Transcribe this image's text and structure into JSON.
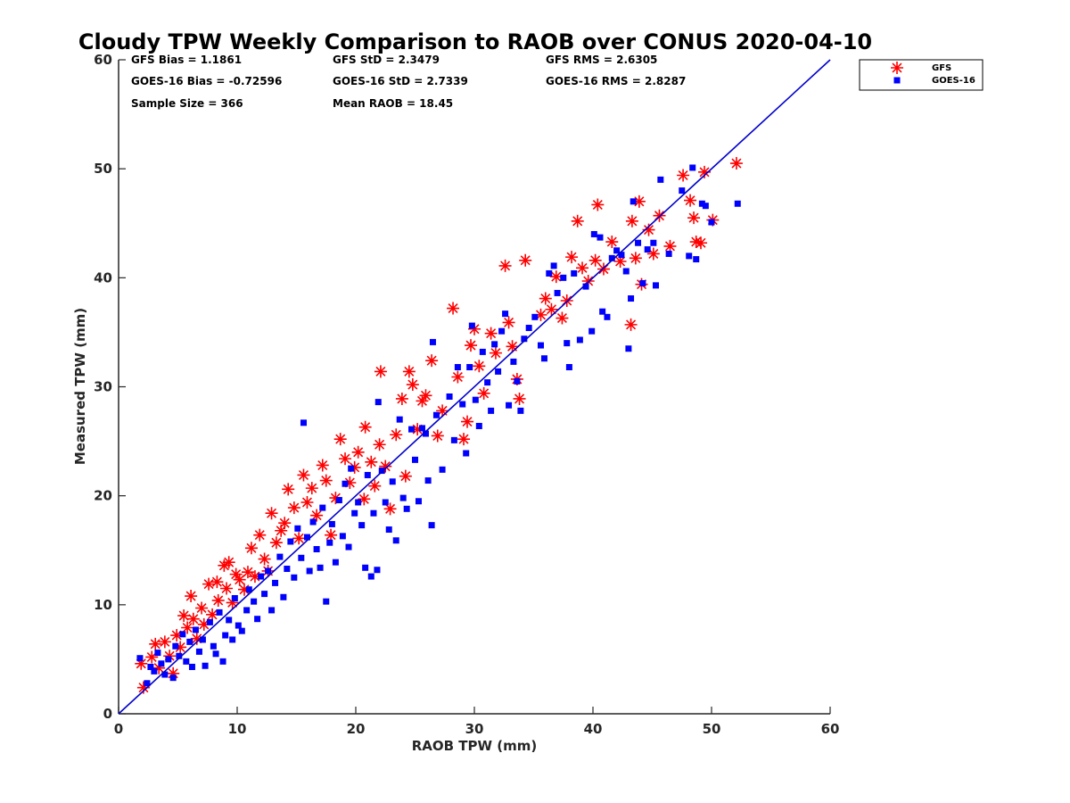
{
  "chart_data": {
    "type": "scatter",
    "title": "Cloudy TPW Weekly Comparison to RAOB over CONUS 2020-04-10",
    "xlabel": "RAOB TPW (mm)",
    "ylabel": "Measured TPW (mm)",
    "xlim": [
      0,
      60
    ],
    "ylim": [
      0,
      60
    ],
    "xticks": [
      0,
      10,
      20,
      30,
      40,
      50,
      60
    ],
    "yticks": [
      0,
      10,
      20,
      30,
      40,
      50,
      60
    ],
    "grid": false,
    "legend_position": "outside-top-right",
    "reference_line": {
      "x": [
        0,
        60
      ],
      "y": [
        0,
        60
      ],
      "color": "#0000cc"
    },
    "stats": [
      {
        "text": "GFS Bias = 1.1861"
      },
      {
        "text": "GFS StD = 2.3479"
      },
      {
        "text": "GFS RMS = 2.6305"
      },
      {
        "text": "GOES-16 Bias = -0.72596"
      },
      {
        "text": "GOES-16 StD = 2.7339"
      },
      {
        "text": "GOES-16 RMS = 2.8287"
      },
      {
        "text": "Sample Size = 366"
      },
      {
        "text": "Mean RAOB = 18.45"
      }
    ],
    "series": [
      {
        "name": "GFS",
        "marker": "asterisk",
        "color": "#ff0000",
        "points": [
          [
            2.1,
            2.4
          ],
          [
            1.9,
            4.6
          ],
          [
            2.8,
            5.2
          ],
          [
            3.1,
            6.4
          ],
          [
            3.4,
            4.2
          ],
          [
            3.9,
            6.6
          ],
          [
            4.3,
            5.3
          ],
          [
            4.6,
            3.7
          ],
          [
            4.9,
            7.2
          ],
          [
            5.2,
            6.1
          ],
          [
            5.5,
            9.0
          ],
          [
            5.8,
            7.9
          ],
          [
            6.3,
            8.7
          ],
          [
            6.1,
            10.8
          ],
          [
            6.6,
            6.9
          ],
          [
            7.0,
            9.7
          ],
          [
            7.2,
            8.2
          ],
          [
            7.6,
            11.9
          ],
          [
            7.9,
            9.1
          ],
          [
            8.3,
            12.1
          ],
          [
            8.4,
            10.4
          ],
          [
            8.9,
            13.6
          ],
          [
            9.1,
            11.5
          ],
          [
            9.3,
            13.9
          ],
          [
            9.6,
            10.2
          ],
          [
            9.9,
            12.8
          ],
          [
            10.2,
            12.3
          ],
          [
            10.6,
            11.4
          ],
          [
            10.9,
            13.0
          ],
          [
            11.2,
            15.2
          ],
          [
            11.5,
            12.6
          ],
          [
            11.9,
            16.4
          ],
          [
            12.3,
            14.2
          ],
          [
            12.6,
            13.1
          ],
          [
            12.9,
            18.4
          ],
          [
            13.3,
            15.7
          ],
          [
            13.7,
            16.8
          ],
          [
            14.0,
            17.5
          ],
          [
            14.3,
            20.6
          ],
          [
            14.8,
            18.9
          ],
          [
            15.2,
            16.1
          ],
          [
            15.6,
            21.9
          ],
          [
            15.9,
            19.4
          ],
          [
            16.3,
            20.7
          ],
          [
            16.7,
            18.2
          ],
          [
            17.2,
            22.8
          ],
          [
            17.5,
            21.4
          ],
          [
            17.9,
            16.4
          ],
          [
            18.3,
            19.8
          ],
          [
            18.7,
            25.2
          ],
          [
            19.1,
            23.4
          ],
          [
            19.5,
            21.2
          ],
          [
            19.9,
            22.6
          ],
          [
            20.2,
            24.0
          ],
          [
            20.7,
            19.7
          ],
          [
            20.8,
            26.3
          ],
          [
            21.3,
            23.1
          ],
          [
            21.6,
            20.9
          ],
          [
            22.0,
            24.7
          ],
          [
            22.1,
            31.4
          ],
          [
            22.5,
            22.7
          ],
          [
            22.9,
            18.8
          ],
          [
            23.4,
            25.6
          ],
          [
            23.9,
            28.9
          ],
          [
            24.2,
            21.8
          ],
          [
            24.5,
            31.4
          ],
          [
            24.8,
            30.2
          ],
          [
            25.2,
            26.1
          ],
          [
            25.6,
            28.7
          ],
          [
            25.9,
            29.2
          ],
          [
            26.4,
            32.4
          ],
          [
            26.9,
            25.5
          ],
          [
            27.3,
            27.8
          ],
          [
            28.2,
            37.2
          ],
          [
            28.6,
            30.9
          ],
          [
            29.1,
            25.2
          ],
          [
            29.4,
            26.8
          ],
          [
            29.7,
            33.8
          ],
          [
            30.0,
            35.3
          ],
          [
            30.4,
            31.9
          ],
          [
            30.8,
            29.4
          ],
          [
            31.4,
            34.9
          ],
          [
            31.8,
            33.1
          ],
          [
            32.6,
            41.1
          ],
          [
            32.9,
            35.9
          ],
          [
            33.2,
            33.7
          ],
          [
            33.6,
            30.7
          ],
          [
            33.8,
            28.9
          ],
          [
            34.3,
            41.6
          ],
          [
            35.6,
            36.6
          ],
          [
            36.0,
            38.1
          ],
          [
            36.5,
            37.1
          ],
          [
            36.9,
            40.1
          ],
          [
            37.4,
            36.3
          ],
          [
            37.8,
            37.9
          ],
          [
            38.2,
            41.9
          ],
          [
            38.7,
            45.2
          ],
          [
            39.1,
            40.9
          ],
          [
            39.6,
            39.7
          ],
          [
            40.2,
            41.6
          ],
          [
            40.4,
            46.7
          ],
          [
            40.9,
            40.8
          ],
          [
            41.6,
            43.3
          ],
          [
            42.3,
            41.5
          ],
          [
            43.2,
            35.7
          ],
          [
            43.3,
            45.2
          ],
          [
            43.6,
            41.8
          ],
          [
            43.9,
            47.0
          ],
          [
            44.1,
            39.4
          ],
          [
            44.7,
            44.4
          ],
          [
            45.1,
            42.2
          ],
          [
            45.6,
            45.7
          ],
          [
            46.5,
            42.9
          ],
          [
            47.6,
            49.4
          ],
          [
            48.2,
            47.1
          ],
          [
            48.5,
            45.5
          ],
          [
            48.7,
            43.3
          ],
          [
            49.1,
            43.2
          ],
          [
            49.4,
            49.7
          ],
          [
            50.1,
            45.3
          ],
          [
            52.1,
            50.5
          ]
        ]
      },
      {
        "name": "GOES-16",
        "marker": "square",
        "color": "#0000ff",
        "points": [
          [
            1.8,
            5.1
          ],
          [
            2.4,
            2.8
          ],
          [
            2.7,
            4.3
          ],
          [
            3.0,
            3.9
          ],
          [
            3.3,
            5.6
          ],
          [
            3.6,
            4.6
          ],
          [
            3.9,
            3.6
          ],
          [
            4.2,
            5.0
          ],
          [
            4.6,
            3.3
          ],
          [
            4.8,
            6.2
          ],
          [
            5.1,
            5.3
          ],
          [
            5.4,
            7.3
          ],
          [
            5.7,
            4.8
          ],
          [
            6.0,
            6.6
          ],
          [
            6.2,
            4.3
          ],
          [
            6.5,
            7.7
          ],
          [
            6.8,
            5.7
          ],
          [
            7.1,
            6.8
          ],
          [
            7.3,
            4.4
          ],
          [
            7.7,
            8.4
          ],
          [
            8.0,
            6.2
          ],
          [
            8.2,
            5.5
          ],
          [
            8.5,
            9.3
          ],
          [
            8.8,
            4.8
          ],
          [
            9.0,
            7.2
          ],
          [
            9.3,
            8.6
          ],
          [
            9.6,
            6.8
          ],
          [
            9.8,
            10.6
          ],
          [
            10.1,
            8.1
          ],
          [
            10.4,
            7.6
          ],
          [
            10.8,
            9.5
          ],
          [
            11.0,
            11.4
          ],
          [
            11.4,
            10.3
          ],
          [
            11.7,
            8.7
          ],
          [
            12.0,
            12.6
          ],
          [
            12.3,
            11.0
          ],
          [
            12.6,
            13.1
          ],
          [
            12.9,
            9.5
          ],
          [
            13.2,
            12.0
          ],
          [
            13.6,
            14.4
          ],
          [
            13.9,
            10.7
          ],
          [
            14.2,
            13.3
          ],
          [
            14.5,
            15.8
          ],
          [
            14.8,
            12.5
          ],
          [
            15.1,
            17.0
          ],
          [
            15.4,
            14.3
          ],
          [
            15.6,
            26.7
          ],
          [
            15.9,
            16.2
          ],
          [
            16.1,
            13.1
          ],
          [
            16.4,
            17.6
          ],
          [
            16.7,
            15.1
          ],
          [
            17.0,
            13.4
          ],
          [
            17.2,
            18.9
          ],
          [
            17.5,
            10.3
          ],
          [
            17.8,
            15.7
          ],
          [
            18.0,
            17.4
          ],
          [
            18.3,
            13.9
          ],
          [
            18.6,
            19.6
          ],
          [
            18.9,
            16.3
          ],
          [
            19.1,
            21.1
          ],
          [
            19.4,
            15.3
          ],
          [
            19.6,
            22.5
          ],
          [
            19.9,
            18.4
          ],
          [
            20.2,
            19.4
          ],
          [
            20.5,
            17.3
          ],
          [
            20.8,
            13.4
          ],
          [
            21.0,
            21.9
          ],
          [
            21.3,
            12.6
          ],
          [
            21.5,
            18.4
          ],
          [
            21.8,
            13.2
          ],
          [
            21.9,
            28.6
          ],
          [
            22.2,
            22.3
          ],
          [
            22.5,
            19.4
          ],
          [
            22.8,
            16.9
          ],
          [
            23.1,
            21.3
          ],
          [
            23.4,
            15.9
          ],
          [
            23.7,
            27.0
          ],
          [
            24.0,
            19.8
          ],
          [
            24.3,
            18.8
          ],
          [
            24.7,
            26.1
          ],
          [
            25.0,
            23.3
          ],
          [
            25.3,
            19.5
          ],
          [
            25.6,
            26.2
          ],
          [
            25.9,
            25.7
          ],
          [
            26.1,
            21.4
          ],
          [
            26.4,
            17.3
          ],
          [
            26.5,
            34.1
          ],
          [
            26.8,
            27.4
          ],
          [
            27.3,
            22.4
          ],
          [
            27.9,
            29.1
          ],
          [
            28.3,
            25.1
          ],
          [
            28.6,
            31.8
          ],
          [
            29.0,
            28.4
          ],
          [
            29.3,
            23.9
          ],
          [
            29.6,
            31.8
          ],
          [
            29.8,
            35.6
          ],
          [
            30.1,
            28.8
          ],
          [
            30.4,
            26.4
          ],
          [
            30.7,
            33.2
          ],
          [
            31.1,
            30.4
          ],
          [
            31.4,
            27.8
          ],
          [
            31.7,
            33.9
          ],
          [
            32.0,
            31.4
          ],
          [
            32.3,
            35.1
          ],
          [
            32.6,
            36.7
          ],
          [
            32.9,
            28.3
          ],
          [
            33.3,
            32.3
          ],
          [
            33.6,
            30.5
          ],
          [
            33.9,
            27.8
          ],
          [
            34.2,
            34.4
          ],
          [
            34.6,
            35.4
          ],
          [
            35.1,
            36.4
          ],
          [
            35.6,
            33.8
          ],
          [
            35.9,
            32.6
          ],
          [
            36.3,
            40.4
          ],
          [
            36.7,
            41.1
          ],
          [
            37.0,
            38.6
          ],
          [
            37.5,
            40.0
          ],
          [
            37.8,
            34.0
          ],
          [
            38.0,
            31.8
          ],
          [
            38.4,
            40.4
          ],
          [
            38.9,
            34.3
          ],
          [
            39.4,
            39.2
          ],
          [
            39.9,
            35.1
          ],
          [
            40.1,
            44.0
          ],
          [
            40.6,
            43.7
          ],
          [
            40.8,
            36.9
          ],
          [
            41.2,
            36.4
          ],
          [
            41.6,
            41.8
          ],
          [
            42.0,
            42.5
          ],
          [
            42.4,
            42.1
          ],
          [
            42.8,
            40.6
          ],
          [
            43.0,
            33.5
          ],
          [
            43.2,
            38.1
          ],
          [
            43.4,
            47.0
          ],
          [
            43.8,
            43.2
          ],
          [
            44.2,
            39.5
          ],
          [
            44.6,
            42.6
          ],
          [
            45.1,
            43.2
          ],
          [
            45.3,
            39.3
          ],
          [
            45.7,
            49.0
          ],
          [
            46.4,
            42.2
          ],
          [
            47.5,
            48.0
          ],
          [
            48.1,
            42.0
          ],
          [
            48.4,
            50.1
          ],
          [
            48.7,
            41.7
          ],
          [
            49.2,
            46.8
          ],
          [
            49.5,
            46.6
          ],
          [
            50.0,
            45.1
          ],
          [
            52.2,
            46.8
          ]
        ]
      }
    ]
  }
}
